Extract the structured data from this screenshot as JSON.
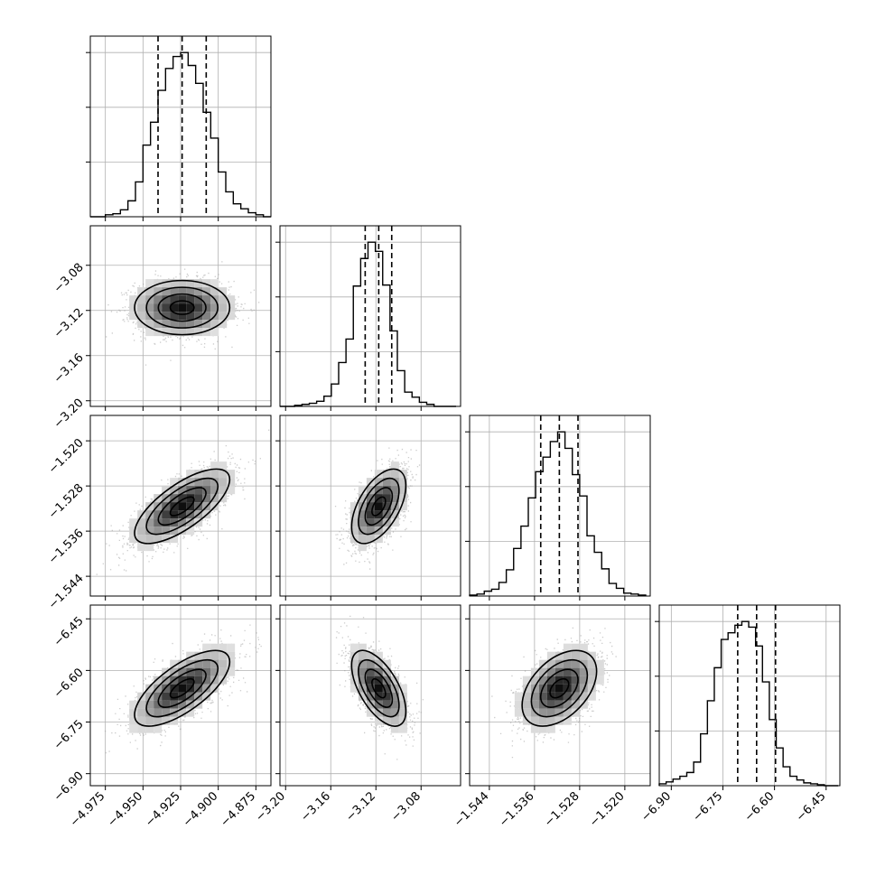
{
  "chart_data": {
    "type": "corner",
    "title": "",
    "grid": true,
    "params": [
      {
        "range": [
          -4.985,
          -4.865
        ],
        "ticks": [
          -4.975,
          -4.95,
          -4.925,
          -4.9,
          -4.875
        ],
        "tick_labels": [
          "−4.975",
          "−4.950",
          "−4.925",
          "−4.900",
          "−4.875"
        ],
        "quantiles": [
          -4.94,
          -4.924,
          -4.908
        ],
        "mean": -4.924,
        "sd": 0.0158
      },
      {
        "range": [
          -3.205,
          -3.045
        ],
        "ticks": [
          -3.2,
          -3.16,
          -3.12,
          -3.08
        ],
        "tick_labels": [
          "−3.20",
          "−3.16",
          "−3.12",
          "−3.08"
        ],
        "quantiles": [
          -3.1295,
          -3.1175,
          -3.106
        ],
        "mean": -3.1175,
        "sd": 0.012
      },
      {
        "range": [
          -1.5475,
          -1.5155
        ],
        "ticks": [
          -1.544,
          -1.536,
          -1.528,
          -1.52
        ],
        "tick_labels": [
          "−1.544",
          "−1.536",
          "−1.528",
          "−1.520"
        ],
        "quantiles": [
          -1.5349,
          -1.5316,
          -1.5283
        ],
        "mean": -1.5316,
        "sd": 0.0033
      },
      {
        "range": [
          -6.935,
          -6.41
        ],
        "ticks": [
          -6.9,
          -6.75,
          -6.6,
          -6.45
        ],
        "tick_labels": [
          "−6.90",
          "−6.75",
          "−6.60",
          "−6.45"
        ],
        "quantiles": [
          -6.707,
          -6.652,
          -6.597
        ],
        "mean": -6.652,
        "sd": 0.055
      }
    ],
    "histograms": [
      {
        "bin_edges": [
          -4.985,
          -4.98,
          -4.975,
          -4.97,
          -4.965,
          -4.96,
          -4.955,
          -4.95,
          -4.945,
          -4.94,
          -4.935,
          -4.93,
          -4.925,
          -4.92,
          -4.915,
          -4.91,
          -4.905,
          -4.9,
          -4.895,
          -4.89,
          -4.885,
          -4.88,
          -4.875,
          -4.87,
          -4.865
        ],
        "counts": [
          0,
          0,
          2,
          3,
          7,
          16,
          35,
          72,
          95,
          127,
          149,
          161,
          165,
          152,
          134,
          105,
          79,
          45,
          25,
          13,
          8,
          4,
          2,
          0
        ]
      },
      {
        "bin_edges": [
          -3.205,
          -3.1985,
          -3.192,
          -3.1855,
          -3.179,
          -3.1725,
          -3.166,
          -3.1595,
          -3.153,
          -3.1465,
          -3.14,
          -3.1335,
          -3.127,
          -3.1205,
          -3.114,
          -3.1075,
          -3.101,
          -3.0945,
          -3.088,
          -3.0815,
          -3.075,
          -3.0685,
          -3.062,
          -3.0555,
          -3.049
        ],
        "counts": [
          0,
          0,
          1,
          2,
          3,
          5,
          10,
          22,
          43,
          66,
          118,
          145,
          161,
          152,
          119,
          74,
          35,
          14,
          9,
          4,
          2,
          0,
          0,
          0
        ]
      },
      {
        "bin_edges": [
          -1.5475,
          -1.5462,
          -1.5449,
          -1.5436,
          -1.5423,
          -1.541,
          -1.5397,
          -1.5384,
          -1.5371,
          -1.5358,
          -1.5345,
          -1.5332,
          -1.5319,
          -1.5306,
          -1.5293,
          -1.528,
          -1.5267,
          -1.5254,
          -1.5241,
          -1.5228,
          -1.5215,
          -1.5202,
          -1.5189,
          -1.5176,
          -1.5163
        ],
        "counts": [
          1,
          2,
          5,
          7,
          14,
          27,
          49,
          72,
          101,
          128,
          143,
          159,
          169,
          152,
          125,
          103,
          62,
          45,
          28,
          13,
          8,
          3,
          2,
          1
        ]
      },
      {
        "bin_edges": [
          -6.935,
          -6.915,
          -6.895,
          -6.875,
          -6.855,
          -6.835,
          -6.815,
          -6.795,
          -6.775,
          -6.755,
          -6.735,
          -6.715,
          -6.695,
          -6.675,
          -6.655,
          -6.635,
          -6.615,
          -6.595,
          -6.575,
          -6.555,
          -6.535,
          -6.515,
          -6.495,
          -6.475,
          -6.455,
          -6.435,
          -6.415
        ],
        "counts": [
          2,
          4,
          7,
          10,
          14,
          25,
          55,
          90,
          125,
          155,
          162,
          170,
          174,
          168,
          148,
          110,
          70,
          40,
          20,
          10,
          6,
          3,
          2,
          1,
          0,
          0
        ]
      }
    ],
    "correlations": [
      {
        "i": 1,
        "j": 0,
        "rho": 0.0
      },
      {
        "i": 2,
        "j": 0,
        "rho": 0.72
      },
      {
        "i": 2,
        "j": 1,
        "rho": 0.55
      },
      {
        "i": 3,
        "j": 0,
        "rho": 0.7
      },
      {
        "i": 3,
        "j": 1,
        "rho": -0.6
      },
      {
        "i": 3,
        "j": 2,
        "rho": 0.45
      }
    ]
  }
}
